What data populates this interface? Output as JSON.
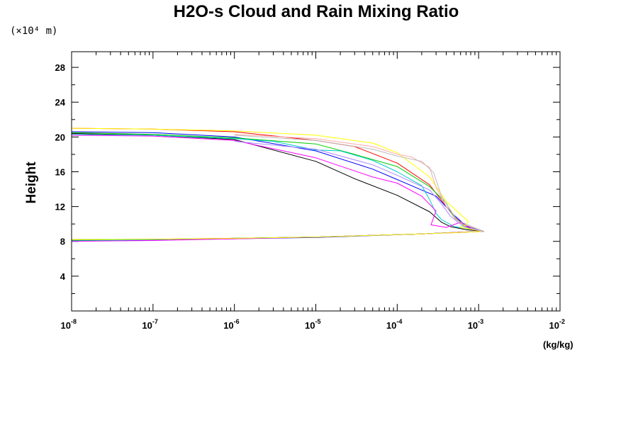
{
  "chart_data": {
    "type": "line",
    "title": "H2O-s Cloud and Rain Mixing Ratio",
    "ylabel": "Height",
    "ylabel_multiplier": "(×10⁴ m)",
    "xunit_label": "(kg/kg)",
    "x_scale": "log",
    "xlim": [
      1e-08,
      0.01
    ],
    "ylim": [
      0,
      29.8
    ],
    "x_ticks": [
      {
        "base": "10",
        "exp": "-8",
        "value": 1e-08
      },
      {
        "base": "10",
        "exp": "-7",
        "value": 1e-07
      },
      {
        "base": "10",
        "exp": "-6",
        "value": 1e-06
      },
      {
        "base": "10",
        "exp": "-5",
        "value": 1e-05
      },
      {
        "base": "10",
        "exp": "-4",
        "value": 0.0001
      },
      {
        "base": "10",
        "exp": "-3",
        "value": 0.001
      },
      {
        "base": "10",
        "exp": "-2",
        "value": 0.01
      }
    ],
    "y_ticks": [
      4,
      8,
      12,
      16,
      20,
      24,
      28
    ],
    "grid": false,
    "series": [
      {
        "color": "#000000",
        "points": [
          [
            1e-08,
            20.4
          ],
          [
            1e-07,
            20.2
          ],
          [
            1e-06,
            19.7
          ],
          [
            1e-05,
            17.2
          ],
          [
            3e-05,
            15.2
          ],
          [
            0.0001,
            13.3
          ],
          [
            0.00025,
            11.4
          ],
          [
            0.00035,
            10.2
          ],
          [
            0.00045,
            9.7
          ],
          [
            0.0007,
            9.35
          ],
          [
            0.00115,
            9.15
          ],
          [
            0.0006,
            9.05
          ],
          [
            0.0002,
            8.85
          ],
          [
            1e-05,
            8.5
          ],
          [
            1e-06,
            8.35
          ],
          [
            1e-07,
            8.2
          ],
          [
            1e-08,
            8.1
          ]
        ]
      },
      {
        "color": "#ff0000",
        "points": [
          [
            1e-08,
            21.0
          ],
          [
            1e-07,
            20.9
          ],
          [
            1e-06,
            20.6
          ],
          [
            1e-05,
            19.6
          ],
          [
            3e-05,
            18.9
          ],
          [
            0.0001,
            17.0
          ],
          [
            0.00025,
            14.5
          ],
          [
            0.0004,
            12.0
          ],
          [
            0.00055,
            10.5
          ],
          [
            0.0008,
            9.5
          ],
          [
            0.00115,
            9.15
          ],
          [
            0.0007,
            9.05
          ],
          [
            0.0002,
            8.85
          ],
          [
            1e-05,
            8.5
          ],
          [
            1e-06,
            8.35
          ],
          [
            1e-07,
            8.25
          ],
          [
            1e-08,
            8.2
          ]
        ]
      },
      {
        "color": "#0000ff",
        "points": [
          [
            1e-08,
            20.6
          ],
          [
            1e-07,
            20.5
          ],
          [
            1e-06,
            20.0
          ],
          [
            1e-05,
            18.4
          ],
          [
            5e-05,
            16.3
          ],
          [
            0.0001,
            15.1
          ],
          [
            0.0003,
            13.2
          ],
          [
            0.0005,
            11.0
          ],
          [
            0.0007,
            9.8
          ],
          [
            0.00115,
            9.15
          ],
          [
            0.0006,
            9.05
          ],
          [
            0.0002,
            8.85
          ],
          [
            1e-05,
            8.45
          ],
          [
            1e-06,
            8.3
          ],
          [
            1e-07,
            8.15
          ],
          [
            1e-08,
            8.1
          ]
        ]
      },
      {
        "color": "#00cc00",
        "points": [
          [
            1e-08,
            20.5
          ],
          [
            1e-07,
            20.3
          ],
          [
            1e-06,
            19.9
          ],
          [
            1e-05,
            19.2
          ],
          [
            3e-05,
            18.0
          ],
          [
            0.0001,
            16.6
          ],
          [
            0.00025,
            14.3
          ],
          [
            0.0004,
            12.4
          ],
          [
            0.0005,
            10.8
          ],
          [
            0.0007,
            9.6
          ],
          [
            0.00115,
            9.15
          ],
          [
            0.0006,
            9.05
          ],
          [
            0.0002,
            8.85
          ],
          [
            1e-05,
            8.5
          ],
          [
            1e-06,
            8.35
          ],
          [
            1e-07,
            8.2
          ],
          [
            1e-08,
            8.15
          ]
        ]
      },
      {
        "color": "#00cccc",
        "points": [
          [
            1e-08,
            20.3
          ],
          [
            1e-07,
            20.2
          ],
          [
            1e-06,
            19.8
          ],
          [
            3e-06,
            19.5
          ],
          [
            1e-05,
            18.5
          ],
          [
            2e-05,
            18.4
          ],
          [
            5e-05,
            17.3
          ],
          [
            0.0001,
            16.0
          ],
          [
            0.0002,
            14.4
          ],
          [
            0.00025,
            12.8
          ],
          [
            0.0003,
            11.2
          ],
          [
            0.00035,
            10.5
          ],
          [
            0.0005,
            9.7
          ],
          [
            0.00115,
            9.15
          ],
          [
            0.0006,
            9.05
          ],
          [
            0.0002,
            8.85
          ],
          [
            1e-05,
            8.5
          ],
          [
            1e-06,
            8.35
          ],
          [
            1e-07,
            8.2
          ],
          [
            1e-08,
            8.05
          ]
        ]
      },
      {
        "color": "#ff00ff",
        "points": [
          [
            1e-08,
            20.2
          ],
          [
            1e-07,
            20.1
          ],
          [
            1e-06,
            19.6
          ],
          [
            1e-05,
            17.6
          ],
          [
            5e-05,
            15.4
          ],
          [
            0.0001,
            14.7
          ],
          [
            0.0002,
            13.2
          ],
          [
            0.0003,
            11.5
          ],
          [
            0.00026,
            9.9
          ],
          [
            0.0004,
            9.6
          ],
          [
            0.0006,
            10.2
          ],
          [
            0.0008,
            9.4
          ],
          [
            0.00115,
            9.15
          ],
          [
            0.0006,
            9.05
          ],
          [
            0.0002,
            8.85
          ],
          [
            1e-05,
            8.5
          ],
          [
            1e-06,
            8.3
          ],
          [
            1e-07,
            8.1
          ],
          [
            1e-08,
            8.0
          ]
        ]
      },
      {
        "color": "#ffff00",
        "points": [
          [
            1e-08,
            21.0
          ],
          [
            1e-07,
            20.9
          ],
          [
            1e-06,
            20.7
          ],
          [
            1e-05,
            20.2
          ],
          [
            5e-05,
            19.3
          ],
          [
            0.0001,
            18.2
          ],
          [
            0.00025,
            15.4
          ],
          [
            0.0004,
            12.6
          ],
          [
            0.0006,
            11.1
          ],
          [
            0.00075,
            10.3
          ],
          [
            0.0007,
            9.9
          ],
          [
            0.0006,
            9.6
          ],
          [
            0.00115,
            9.15
          ],
          [
            0.0007,
            9.05
          ],
          [
            0.0002,
            8.85
          ],
          [
            1e-05,
            8.5
          ],
          [
            1e-06,
            8.35
          ],
          [
            1e-07,
            8.25
          ],
          [
            1e-08,
            8.2
          ]
        ]
      },
      {
        "color": "#ffaaaa",
        "points": [
          [
            1e-06,
            20.3
          ],
          [
            1e-05,
            19.8
          ],
          [
            5e-05,
            18.9
          ],
          [
            0.0001,
            18.0
          ],
          [
            0.00015,
            17.7
          ],
          [
            0.00025,
            16.5
          ],
          [
            0.0003,
            14.2
          ],
          [
            0.0004,
            12.0
          ],
          [
            0.00055,
            10.2
          ],
          [
            0.00115,
            9.15
          ]
        ]
      },
      {
        "color": "#bbbbbb",
        "points": [
          [
            1e-06,
            20.2
          ],
          [
            1e-05,
            19.6
          ],
          [
            5e-05,
            18.6
          ],
          [
            0.0001,
            17.8
          ],
          [
            0.0002,
            17.2
          ],
          [
            0.00028,
            15.9
          ],
          [
            0.00035,
            13.2
          ],
          [
            0.00045,
            11.6
          ],
          [
            0.00055,
            10.4
          ],
          [
            0.00115,
            9.15
          ]
        ]
      },
      {
        "color": "#aa88ff",
        "points": [
          [
            1e-06,
            19.5
          ],
          [
            1e-05,
            18.6
          ],
          [
            5e-05,
            16.8
          ],
          [
            0.0001,
            15.6
          ],
          [
            0.00025,
            13.9
          ],
          [
            0.00035,
            12.3
          ],
          [
            0.00045,
            10.9
          ],
          [
            0.00065,
            9.7
          ],
          [
            0.00115,
            9.15
          ]
        ]
      }
    ]
  }
}
